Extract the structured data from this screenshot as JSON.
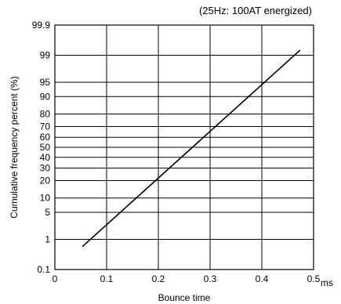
{
  "chart_data": {
    "type": "line",
    "annotation": "(25Hz: 100AT energized)",
    "xlabel": "Bounce time",
    "xunit": "ms",
    "ylabel": "Cumulative frequency percent (%)",
    "x_scale": "linear",
    "y_scale": "probability",
    "xlim": [
      0,
      0.5
    ],
    "x_ticks": [
      0,
      0.1,
      0.2,
      0.3,
      0.4,
      0.5
    ],
    "x_tick_labels": [
      "0",
      "0.1",
      "0.2",
      "0.3",
      "0.4",
      "0.5"
    ],
    "y_ticks": [
      0.1,
      1,
      5,
      10,
      20,
      30,
      40,
      50,
      60,
      70,
      80,
      90,
      95,
      99,
      99.9
    ],
    "y_tick_labels": [
      "0.1",
      "1",
      "5",
      "10",
      "20",
      "30",
      "40",
      "50",
      "60",
      "70",
      "80",
      "90",
      "95",
      "99",
      "99.9"
    ],
    "grid": true,
    "series": [
      {
        "x": [
          0.053,
          0.474
        ],
        "y": [
          0.6,
          99.3
        ]
      }
    ]
  }
}
